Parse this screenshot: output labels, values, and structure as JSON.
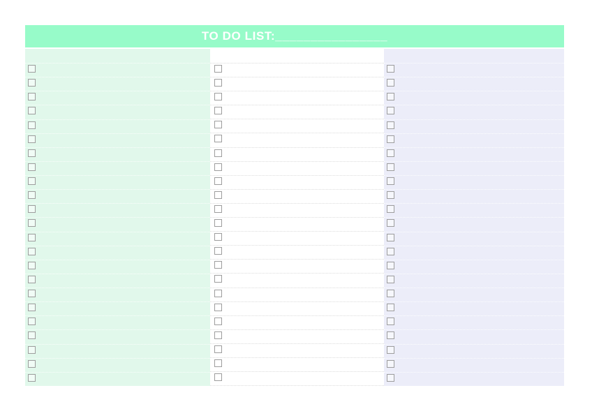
{
  "header": {
    "title": "TO DO LIST:",
    "blank_line": "________________",
    "bg_color": "#97fbc9",
    "text_color": "#ffffff"
  },
  "list": {
    "row_count": 23,
    "checkbox_state": "unchecked",
    "checkbox_border_color": "#9d9d9d",
    "columns": [
      {
        "name": "left",
        "bg_color": "#e1f8eb",
        "separator_color": "rgba(255,255,255,0.85)"
      },
      {
        "name": "middle",
        "bg_color": "#ffffff",
        "separator_color": "#dcdcdc"
      },
      {
        "name": "right",
        "bg_color": "#ecedf9",
        "separator_color": "rgba(255,255,255,0.85)"
      }
    ]
  }
}
